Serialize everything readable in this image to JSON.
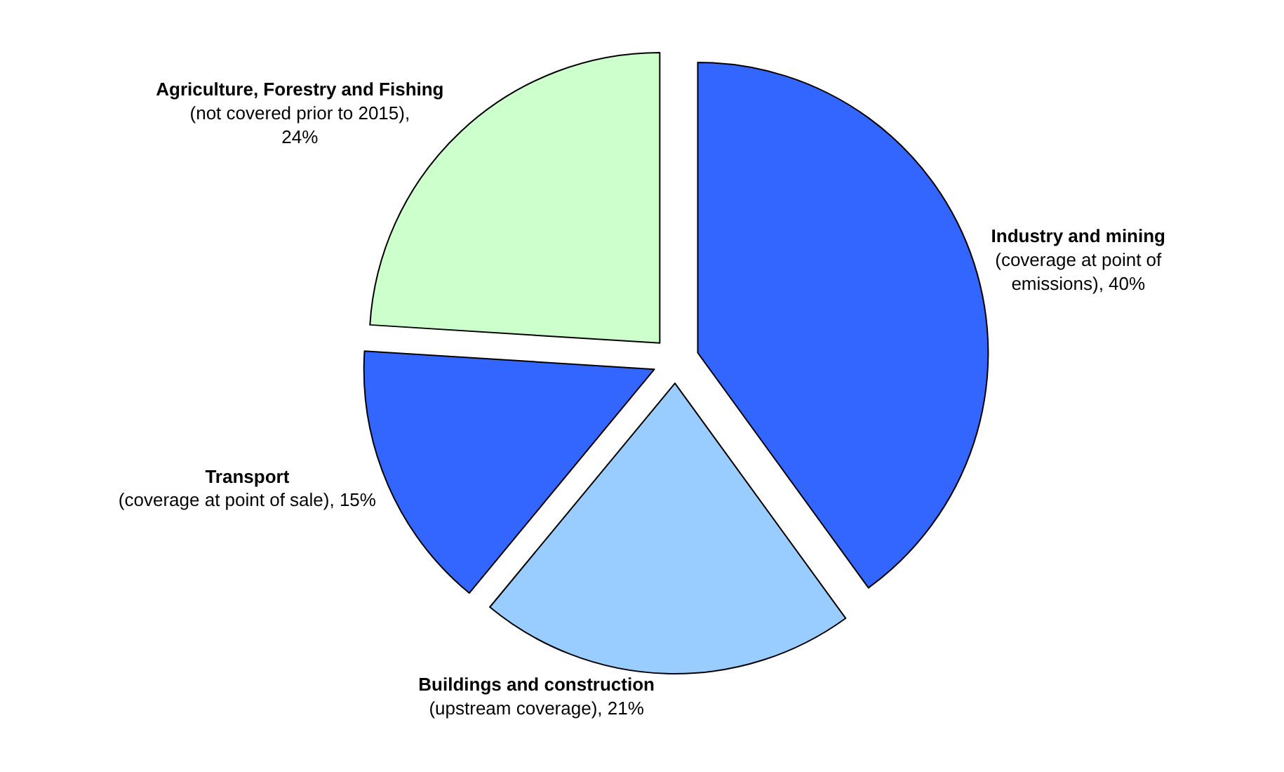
{
  "chart_data": {
    "type": "pie",
    "categories": [
      "Industry and mining",
      "Buildings and construction",
      "Transport",
      "Agriculture, Forestry and Fishing"
    ],
    "values": [
      40,
      21,
      15,
      24
    ],
    "value_labels": [
      "(coverage at point of\nemissions), 40%",
      "(upstream coverage), 21%",
      "(coverage at point of sale), 15%",
      "(not covered prior to 2015),\n24%"
    ],
    "colors": [
      "#3366ff",
      "#99ccff",
      "#3366ff",
      "#ccffcc"
    ],
    "legend": false
  }
}
